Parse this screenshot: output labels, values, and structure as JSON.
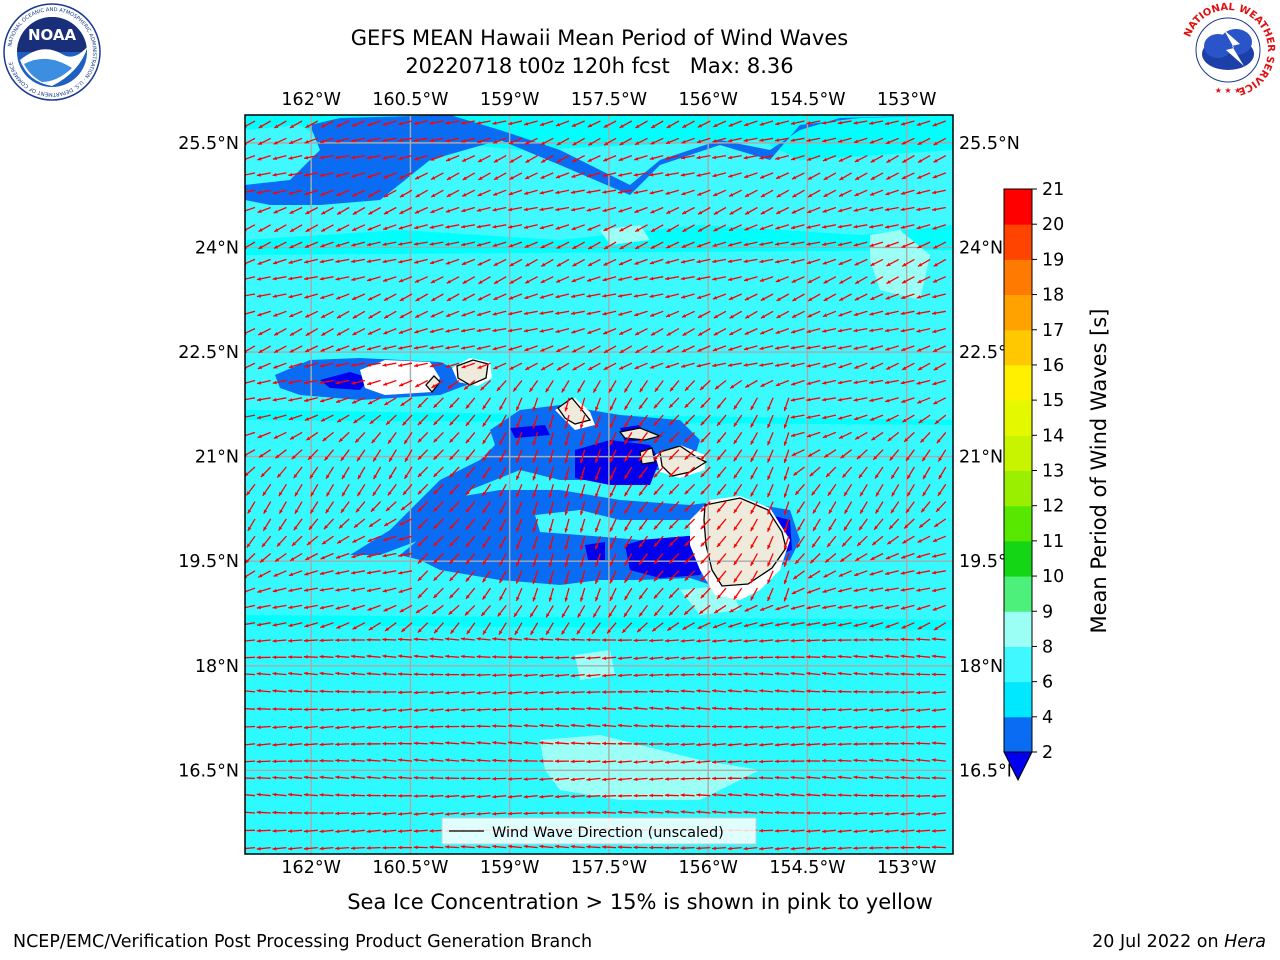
{
  "title": {
    "line1": "GEFS MEAN Hawaii Mean Period of Wind Waves",
    "line2": "20220718 t00z 120h fcst   Max: 8.36"
  },
  "logos": {
    "left": "NOAA",
    "left_ring_text": "NATIONAL OCEANIC AND ATMOSPHERIC ADMINISTRATION · U.S. DEPARTMENT OF COMMERCE",
    "right_ring_text": "NATIONAL WEATHER SERVICE"
  },
  "map": {
    "lon_labels": [
      "162°W",
      "160.5°W",
      "159°W",
      "157.5°W",
      "156°W",
      "154.5°W",
      "153°W"
    ],
    "lat_labels": [
      "25.5°N",
      "24°N",
      "22.5°N",
      "21°N",
      "19.5°N",
      "18°N",
      "16.5°N"
    ],
    "legend": "Wind Wave Direction (unscaled)",
    "arrow_color": "#ff0000",
    "extent": {
      "lon": [
        -163.0,
        -152.3
      ],
      "lat": [
        15.3,
        25.9
      ]
    }
  },
  "colorbar": {
    "label": "Mean Period of Wind Waves [s]",
    "ticks": [
      "2",
      "4",
      "6",
      "8",
      "9",
      "10",
      "11",
      "12",
      "13",
      "14",
      "15",
      "16",
      "17",
      "18",
      "19",
      "20",
      "21"
    ],
    "colors": [
      "#0a6cf2",
      "#00e8ff",
      "#40f8ff",
      "#9cfff6",
      "#4cf07a",
      "#14d614",
      "#58e800",
      "#9aee00",
      "#c8f400",
      "#e4f800",
      "#fff000",
      "#ffc800",
      "#ffa200",
      "#ff7a00",
      "#ff4400",
      "#ff0000"
    ],
    "underflow": "#0000ee"
  },
  "note": "Sea Ice Concentration > 15% is shown in pink to yellow",
  "footer": {
    "left": "NCEP/EMC/Verification Post Processing Product Generation Branch",
    "date": "20 Jul 2022 on ",
    "host": "Hera"
  }
}
